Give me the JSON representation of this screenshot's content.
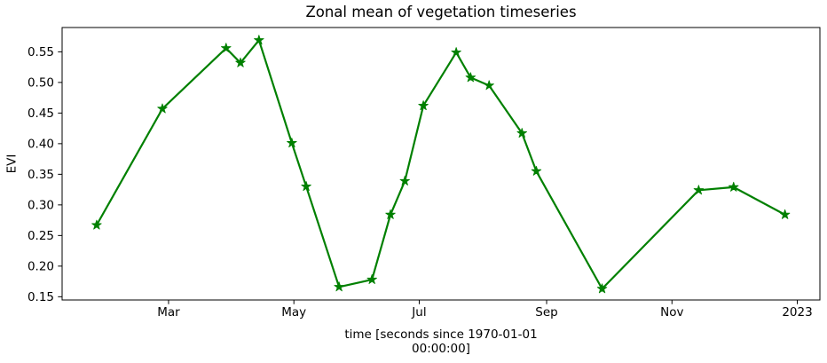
{
  "figure": {
    "background": "#ffffff"
  },
  "chart_data": {
    "type": "line",
    "title": "Zonal mean of vegetation timeseries",
    "ylabel": "EVI",
    "xlabel_lines": [
      "time [seconds since 1970-01-01",
      "00:00:00]"
    ],
    "line_color": "#008000",
    "marker": "star",
    "grid": false,
    "legend": null,
    "dates": [
      "2022-01-25",
      "2022-02-26",
      "2022-03-29",
      "2022-04-05",
      "2022-04-14",
      "2022-04-30",
      "2022-05-07",
      "2022-05-23",
      "2022-06-08",
      "2022-06-17",
      "2022-06-24",
      "2022-07-03",
      "2022-07-19",
      "2022-07-26",
      "2022-08-04",
      "2022-08-20",
      "2022-08-27",
      "2022-09-28",
      "2022-11-14",
      "2022-12-01",
      "2022-12-26"
    ],
    "values": [
      0.267,
      0.457,
      0.556,
      0.532,
      0.569,
      0.401,
      0.33,
      0.166,
      0.178,
      0.284,
      0.339,
      0.462,
      0.549,
      0.508,
      0.495,
      0.417,
      0.355,
      0.163,
      0.324,
      0.329,
      0.284
    ],
    "xticks": [
      {
        "date": "2022-03-01",
        "label": "Mar"
      },
      {
        "date": "2022-05-01",
        "label": "May"
      },
      {
        "date": "2022-07-01",
        "label": "Jul"
      },
      {
        "date": "2022-09-01",
        "label": "Sep"
      },
      {
        "date": "2022-11-01",
        "label": "Nov"
      },
      {
        "date": "2023-01-01",
        "label": "2023"
      }
    ],
    "yticks": [
      0.15,
      0.2,
      0.25,
      0.3,
      0.35,
      0.4,
      0.45,
      0.5,
      0.55
    ],
    "xlim_doy": [
      8.2,
      377.0
    ],
    "ylim": [
      0.1447,
      0.5897
    ]
  }
}
